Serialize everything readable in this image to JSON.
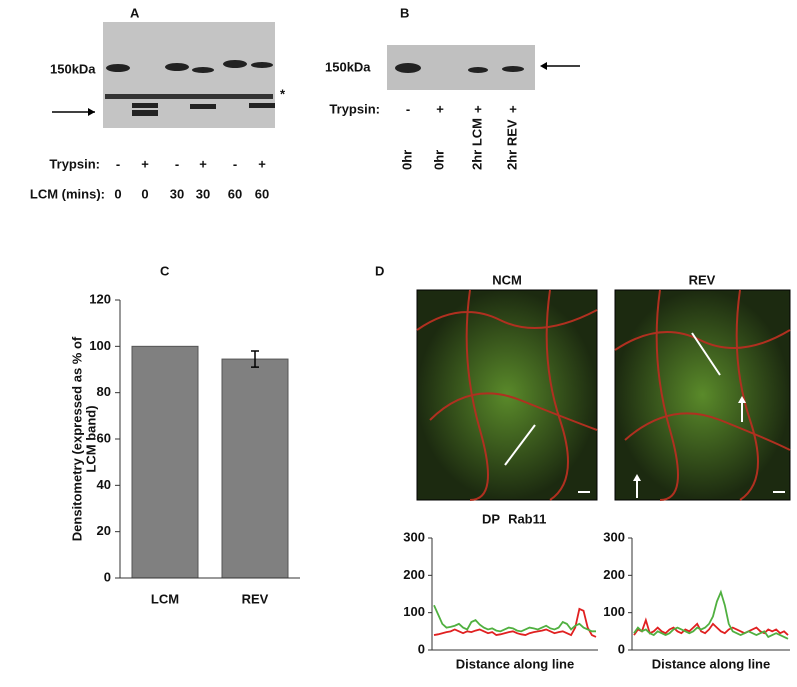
{
  "panel_a": {
    "label": "A",
    "marker": "150kDa",
    "asterisk": "*",
    "trypsin_label": "Trypsin:",
    "trypsin": [
      "-",
      "+",
      "-",
      "+",
      "-",
      "+"
    ],
    "lcm_label": "LCM (mins):",
    "lcm": [
      "0",
      "0",
      "30",
      "30",
      "60",
      "60"
    ]
  },
  "panel_b": {
    "label": "B",
    "marker": "150kDa",
    "trypsin_label": "Trypsin:",
    "trypsin": [
      "-",
      "+",
      "+",
      "+"
    ],
    "lanes": [
      "0hr",
      "0hr",
      "2hr LCM",
      "2hr REV"
    ]
  },
  "panel_d": {
    "label": "D",
    "images": [
      "NCM",
      "REV"
    ]
  },
  "chart_data": [
    {
      "type": "bar",
      "panel_label": "C",
      "categories": [
        "LCM",
        "REV"
      ],
      "values": [
        100,
        94.5
      ],
      "errors": [
        0,
        3.5
      ],
      "color": "#808080",
      "ylim": [
        0,
        120
      ],
      "yticks": [
        0,
        20,
        40,
        60,
        80,
        100,
        120
      ],
      "ylabel": [
        "Densitometry (expressed as % of",
        "LCM band)"
      ]
    },
    {
      "type": "line",
      "xlabel": "Distance along line",
      "ylim": [
        0,
        300
      ],
      "yticks": [
        0,
        100,
        200,
        300
      ],
      "series": [
        {
          "name": "DP",
          "color": "#e02020",
          "values": [
            40,
            42,
            45,
            48,
            50,
            55,
            50,
            45,
            50,
            48,
            52,
            55,
            50,
            45,
            48,
            40,
            42,
            45,
            48,
            50,
            45,
            42,
            40,
            45,
            48,
            50,
            52,
            55,
            50,
            45,
            48,
            50,
            45,
            40,
            60,
            110,
            105,
            60,
            40,
            35
          ]
        },
        {
          "name": "Rab11",
          "color": "#50b040",
          "values": [
            120,
            95,
            70,
            60,
            62,
            65,
            70,
            60,
            55,
            75,
            80,
            68,
            60,
            55,
            58,
            52,
            50,
            55,
            60,
            58,
            52,
            50,
            55,
            60,
            58,
            55,
            60,
            65,
            58,
            55,
            60,
            75,
            70,
            55,
            65,
            70,
            60,
            55,
            50,
            50
          ]
        }
      ]
    },
    {
      "type": "line",
      "xlabel": "Distance along line",
      "ylim": [
        0,
        300
      ],
      "yticks": [
        0,
        100,
        200,
        300
      ],
      "series": [
        {
          "color": "#e02020",
          "values": [
            40,
            55,
            50,
            80,
            45,
            50,
            60,
            50,
            45,
            55,
            60,
            50,
            45,
            55,
            50,
            60,
            70,
            50,
            45,
            55,
            70,
            60,
            50,
            45,
            55,
            60,
            55,
            50,
            45,
            50,
            55,
            60,
            50,
            45,
            55,
            50,
            55,
            45,
            50,
            40
          ]
        },
        {
          "color": "#50b040",
          "values": [
            45,
            60,
            50,
            55,
            45,
            40,
            50,
            45,
            40,
            45,
            55,
            60,
            55,
            50,
            45,
            50,
            60,
            55,
            60,
            70,
            90,
            130,
            155,
            120,
            70,
            50,
            45,
            40,
            45,
            50,
            45,
            40,
            45,
            50,
            35,
            40,
            45,
            40,
            35,
            30
          ]
        }
      ]
    }
  ]
}
